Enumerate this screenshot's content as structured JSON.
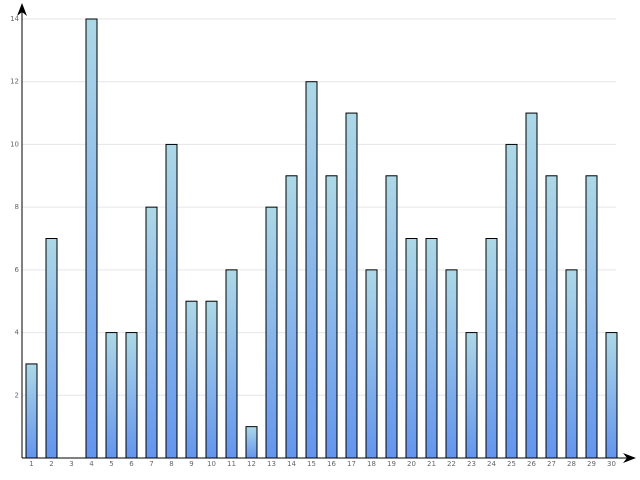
{
  "chart_data": {
    "type": "bar",
    "title": "",
    "xlabel": "",
    "ylabel": "",
    "categories": [
      "1",
      "2",
      "3",
      "4",
      "5",
      "6",
      "7",
      "8",
      "9",
      "10",
      "11",
      "12",
      "13",
      "14",
      "15",
      "16",
      "17",
      "18",
      "19",
      "20",
      "21",
      "22",
      "23",
      "24",
      "25",
      "26",
      "27",
      "28",
      "29",
      "30"
    ],
    "values": [
      3,
      7,
      0,
      14,
      4,
      4,
      8,
      10,
      5,
      5,
      6,
      1,
      8,
      9,
      12,
      9,
      11,
      6,
      9,
      7,
      7,
      6,
      4,
      7,
      10,
      11,
      9,
      6,
      9,
      4
    ],
    "ylim": [
      0,
      14
    ],
    "yticks": [
      "2",
      "4",
      "6",
      "8",
      "10",
      "12",
      "14"
    ],
    "grid": true,
    "legend": "none",
    "colors": {
      "bar_top": "#add8e6",
      "bar_bottom": "#6495ed",
      "grid": "#e6e6e6",
      "axis": "#000000"
    }
  }
}
